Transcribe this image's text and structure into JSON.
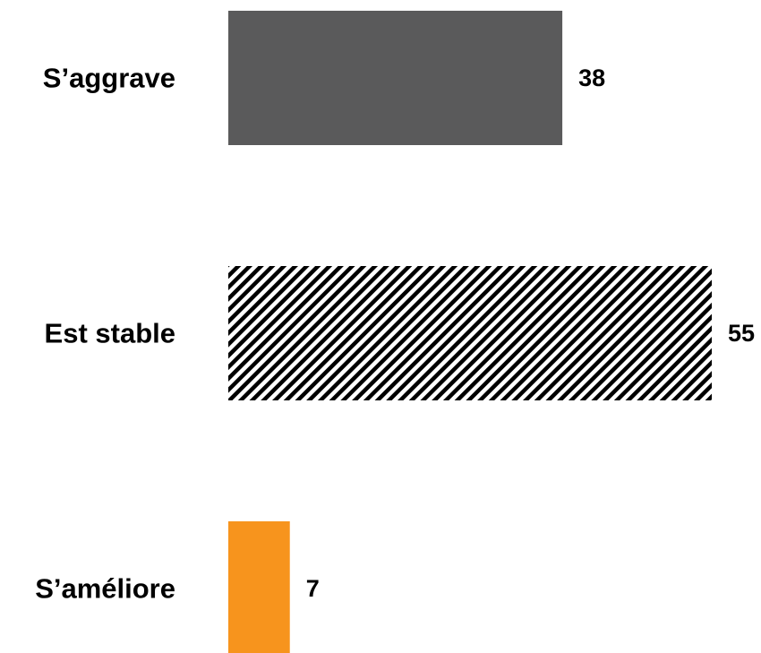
{
  "chart_data": {
    "type": "bar",
    "orientation": "horizontal",
    "categories": [
      "S’aggrave",
      "Est stable",
      "S’améliore"
    ],
    "values": [
      38,
      55,
      7
    ],
    "value_labels": [
      "38",
      "55",
      "7"
    ],
    "styles": [
      {
        "fill": "solid",
        "color": "#5a5a5b"
      },
      {
        "fill": "diagonal-hatch",
        "color": "#000000"
      },
      {
        "fill": "solid",
        "color": "#f7941d"
      }
    ],
    "title": "",
    "xlabel": "",
    "ylabel": "",
    "grid": false,
    "legend": "none"
  }
}
